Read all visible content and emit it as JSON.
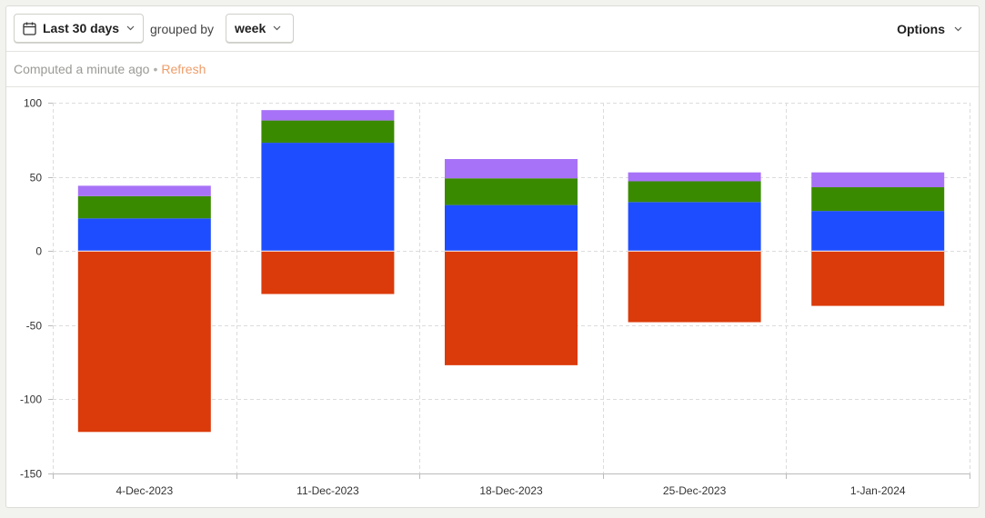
{
  "toolbar": {
    "date_range_label": "Last 30 days",
    "grouped_by_label": "grouped by",
    "interval_label": "week",
    "options_label": "Options"
  },
  "status": {
    "computed_text": "Computed a minute ago",
    "separator": "•",
    "refresh_label": "Refresh"
  },
  "chart_data": {
    "type": "bar",
    "stacked": true,
    "categories": [
      "4-Dec-2023",
      "11-Dec-2023",
      "18-Dec-2023",
      "25-Dec-2023",
      "1-Jan-2024"
    ],
    "series": [
      {
        "color": "#db3a0a",
        "values": [
          -122,
          -29,
          -77,
          -48,
          -37
        ]
      },
      {
        "color": "#1e4dff",
        "values": [
          22,
          73,
          31,
          33,
          27
        ]
      },
      {
        "color": "#3a8a00",
        "values": [
          15,
          15,
          18,
          14,
          16
        ]
      },
      {
        "color": "#a772f7",
        "values": [
          7,
          7,
          13,
          6,
          10
        ]
      }
    ],
    "yticks": [
      100,
      50,
      0,
      -50,
      -100,
      -150
    ],
    "ylim": [
      -150,
      100
    ],
    "grid": true,
    "legend": false,
    "title": "",
    "xlabel": "",
    "ylabel": ""
  }
}
